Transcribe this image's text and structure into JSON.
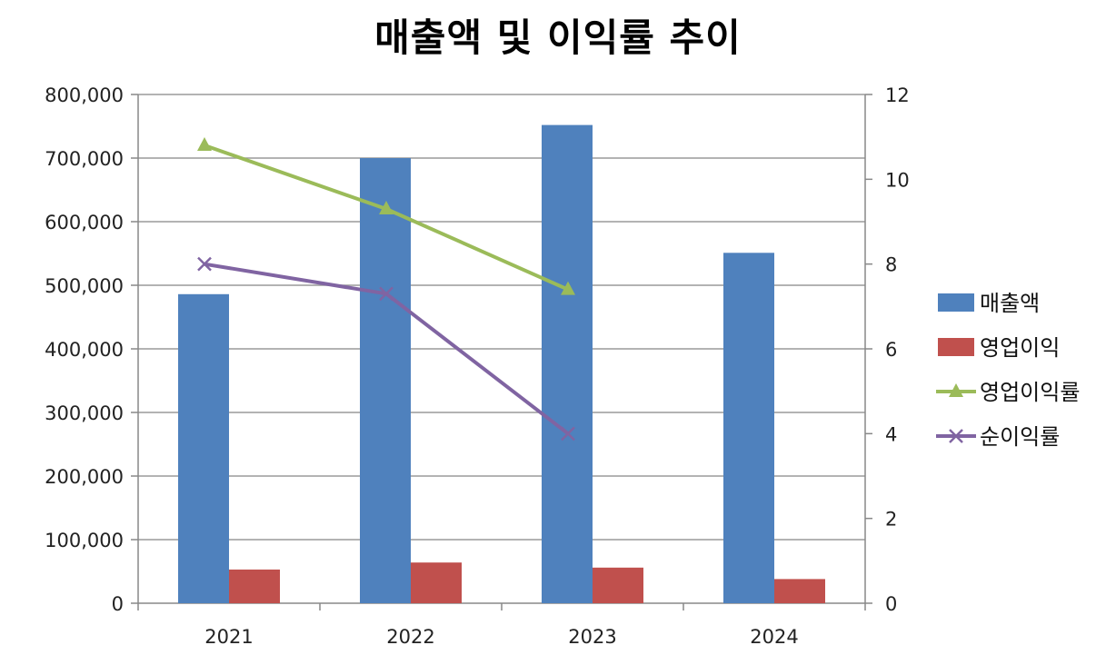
{
  "chart_data": {
    "type": "bar",
    "title": "매출액 및 이익률 추이",
    "categories": [
      "2021",
      "2022",
      "2023",
      "2024"
    ],
    "y_left": {
      "min": 0,
      "max": 800000,
      "step": 100000,
      "tick_labels": [
        "0",
        "100,000",
        "200,000",
        "300,000",
        "400,000",
        "500,000",
        "600,000",
        "700,000",
        "800,000"
      ]
    },
    "y_right": {
      "min": 0,
      "max": 12,
      "step": 2,
      "tick_labels": [
        "0",
        "2",
        "4",
        "6",
        "8",
        "10",
        "12"
      ]
    },
    "grid": true,
    "legend_position": "right",
    "series": [
      {
        "name": "매출액",
        "kind": "bar",
        "axis": "left",
        "color": "#4F81BD",
        "values": [
          486000,
          700000,
          752000,
          551000
        ]
      },
      {
        "name": "영업이익",
        "kind": "bar",
        "axis": "left",
        "color": "#C0504D",
        "values": [
          53000,
          64000,
          56000,
          38000
        ]
      },
      {
        "name": "영업이익률",
        "kind": "line",
        "axis": "right",
        "color": "#9BBB59",
        "marker": "triangle",
        "values": [
          10.8,
          9.3,
          7.4,
          null
        ]
      },
      {
        "name": "순이익률",
        "kind": "line",
        "axis": "right",
        "color": "#8064A2",
        "marker": "x",
        "values": [
          8.0,
          7.3,
          4.0,
          null
        ]
      }
    ]
  }
}
